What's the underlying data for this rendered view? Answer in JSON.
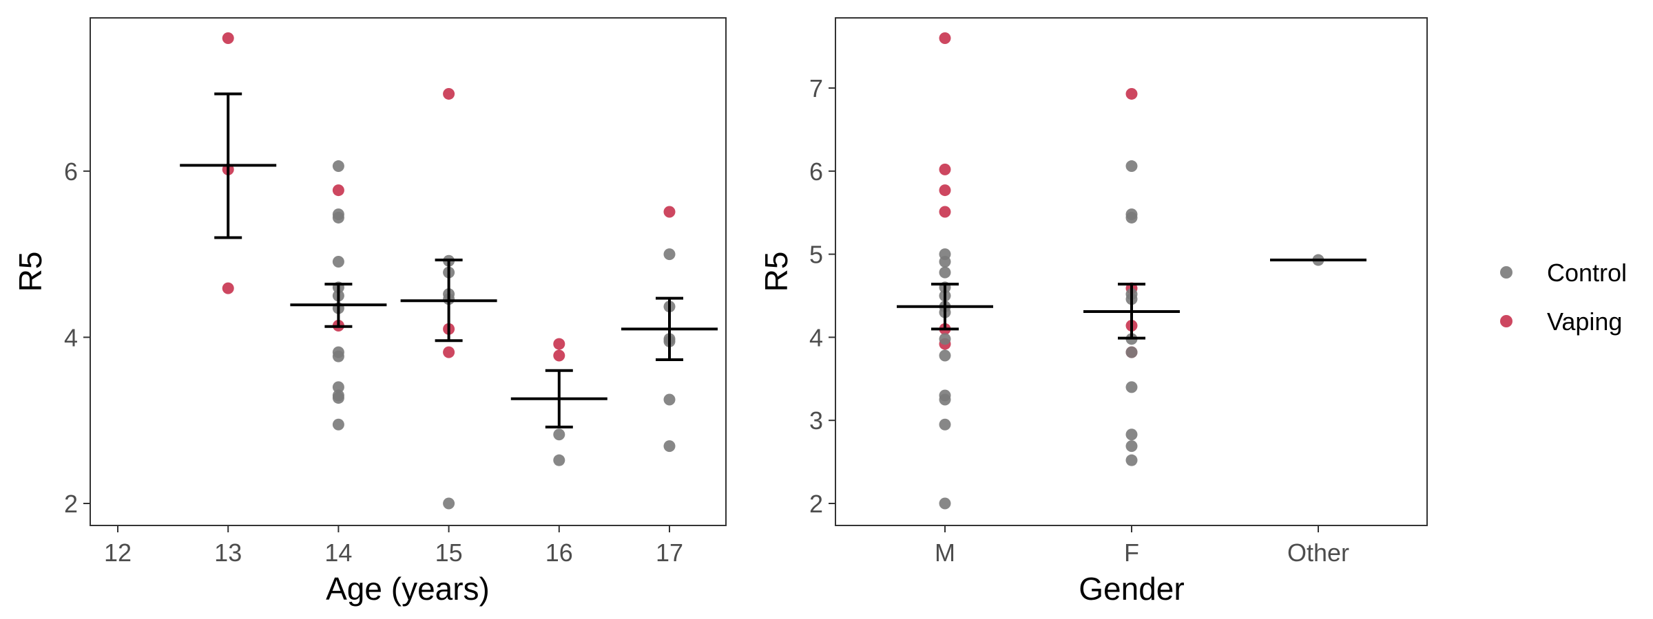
{
  "colors": {
    "Control": "#7a7a7a",
    "Vaping": "#c8334f",
    "errorbar": "#000000"
  },
  "legend": {
    "placement": "right",
    "items": [
      {
        "key": "Control",
        "label": "Control"
      },
      {
        "key": "Vaping",
        "label": "Vaping"
      }
    ]
  },
  "chart_data": [
    {
      "type": "scatter",
      "xlabel": "Age (years)",
      "ylabel": "R5",
      "categories": [
        "12",
        "13",
        "14",
        "15",
        "16",
        "17"
      ],
      "yticks": [
        "2",
        "4",
        "6"
      ],
      "ylim": [
        1.75,
        7.9
      ],
      "grid": false,
      "points": [
        {
          "x": "13",
          "y": 7.6,
          "group": "Vaping"
        },
        {
          "x": "13",
          "y": 6.02,
          "group": "Vaping"
        },
        {
          "x": "13",
          "y": 4.59,
          "group": "Vaping"
        },
        {
          "x": "14",
          "y": 6.06,
          "group": "Control"
        },
        {
          "x": "14",
          "y": 5.48,
          "group": "Control"
        },
        {
          "x": "14",
          "y": 5.44,
          "group": "Control"
        },
        {
          "x": "14",
          "y": 4.91,
          "group": "Control"
        },
        {
          "x": "14",
          "y": 4.6,
          "group": "Control"
        },
        {
          "x": "14",
          "y": 4.5,
          "group": "Control"
        },
        {
          "x": "14",
          "y": 4.35,
          "group": "Control"
        },
        {
          "x": "14",
          "y": 3.82,
          "group": "Control"
        },
        {
          "x": "14",
          "y": 3.77,
          "group": "Control"
        },
        {
          "x": "14",
          "y": 3.4,
          "group": "Control"
        },
        {
          "x": "14",
          "y": 3.3,
          "group": "Control"
        },
        {
          "x": "14",
          "y": 3.27,
          "group": "Control"
        },
        {
          "x": "14",
          "y": 2.95,
          "group": "Control"
        },
        {
          "x": "14",
          "y": 5.77,
          "group": "Vaping"
        },
        {
          "x": "14",
          "y": 4.14,
          "group": "Vaping"
        },
        {
          "x": "15",
          "y": 4.92,
          "group": "Control"
        },
        {
          "x": "15",
          "y": 4.78,
          "group": "Control"
        },
        {
          "x": "15",
          "y": 4.52,
          "group": "Control"
        },
        {
          "x": "15",
          "y": 4.46,
          "group": "Control"
        },
        {
          "x": "15",
          "y": 2.0,
          "group": "Control"
        },
        {
          "x": "15",
          "y": 6.93,
          "group": "Vaping"
        },
        {
          "x": "15",
          "y": 4.1,
          "group": "Vaping"
        },
        {
          "x": "15",
          "y": 3.82,
          "group": "Vaping"
        },
        {
          "x": "16",
          "y": 2.83,
          "group": "Control"
        },
        {
          "x": "16",
          "y": 2.52,
          "group": "Control"
        },
        {
          "x": "16",
          "y": 3.92,
          "group": "Vaping"
        },
        {
          "x": "16",
          "y": 3.78,
          "group": "Vaping"
        },
        {
          "x": "17",
          "y": 5.0,
          "group": "Control"
        },
        {
          "x": "17",
          "y": 4.37,
          "group": "Control"
        },
        {
          "x": "17",
          "y": 3.98,
          "group": "Control"
        },
        {
          "x": "17",
          "y": 3.95,
          "group": "Control"
        },
        {
          "x": "17",
          "y": 3.25,
          "group": "Control"
        },
        {
          "x": "17",
          "y": 2.69,
          "group": "Control"
        },
        {
          "x": "17",
          "y": 5.51,
          "group": "Vaping"
        }
      ],
      "summary": [
        {
          "x": "13",
          "mean": 6.07,
          "lower": 5.2,
          "upper": 6.93
        },
        {
          "x": "14",
          "mean": 4.39,
          "lower": 4.13,
          "upper": 4.64
        },
        {
          "x": "15",
          "mean": 4.44,
          "lower": 3.96,
          "upper": 4.93
        },
        {
          "x": "16",
          "mean": 3.26,
          "lower": 2.92,
          "upper": 3.6
        },
        {
          "x": "17",
          "mean": 4.1,
          "lower": 3.73,
          "upper": 4.47
        }
      ]
    },
    {
      "type": "scatter",
      "xlabel": "Gender",
      "ylabel": "R5",
      "categories": [
        "M",
        "F",
        "Other"
      ],
      "yticks": [
        "2",
        "3",
        "4",
        "5",
        "6",
        "7"
      ],
      "ylim": [
        1.75,
        7.9
      ],
      "grid": false,
      "points": [
        {
          "x": "M",
          "y": 7.6,
          "group": "Vaping"
        },
        {
          "x": "M",
          "y": 6.02,
          "group": "Vaping"
        },
        {
          "x": "M",
          "y": 5.77,
          "group": "Vaping"
        },
        {
          "x": "M",
          "y": 5.51,
          "group": "Vaping"
        },
        {
          "x": "M",
          "y": 4.1,
          "group": "Vaping"
        },
        {
          "x": "M",
          "y": 3.92,
          "group": "Vaping"
        },
        {
          "x": "M",
          "y": 5.0,
          "group": "Control"
        },
        {
          "x": "M",
          "y": 4.91,
          "group": "Control"
        },
        {
          "x": "M",
          "y": 4.78,
          "group": "Control"
        },
        {
          "x": "M",
          "y": 4.6,
          "group": "Control"
        },
        {
          "x": "M",
          "y": 4.5,
          "group": "Control"
        },
        {
          "x": "M",
          "y": 4.37,
          "group": "Control"
        },
        {
          "x": "M",
          "y": 4.3,
          "group": "Control"
        },
        {
          "x": "M",
          "y": 3.98,
          "group": "Control"
        },
        {
          "x": "M",
          "y": 3.78,
          "group": "Control"
        },
        {
          "x": "M",
          "y": 3.3,
          "group": "Control"
        },
        {
          "x": "M",
          "y": 3.25,
          "group": "Control"
        },
        {
          "x": "M",
          "y": 2.95,
          "group": "Control"
        },
        {
          "x": "M",
          "y": 2.0,
          "group": "Control"
        },
        {
          "x": "F",
          "y": 6.93,
          "group": "Vaping"
        },
        {
          "x": "F",
          "y": 4.59,
          "group": "Vaping"
        },
        {
          "x": "F",
          "y": 4.14,
          "group": "Vaping"
        },
        {
          "x": "F",
          "y": 3.82,
          "group": "Vaping"
        },
        {
          "x": "F",
          "y": 6.06,
          "group": "Control"
        },
        {
          "x": "F",
          "y": 5.48,
          "group": "Control"
        },
        {
          "x": "F",
          "y": 5.44,
          "group": "Control"
        },
        {
          "x": "F",
          "y": 4.52,
          "group": "Control"
        },
        {
          "x": "F",
          "y": 4.46,
          "group": "Control"
        },
        {
          "x": "F",
          "y": 3.98,
          "group": "Control"
        },
        {
          "x": "F",
          "y": 3.82,
          "group": "Control"
        },
        {
          "x": "F",
          "y": 3.4,
          "group": "Control"
        },
        {
          "x": "F",
          "y": 2.83,
          "group": "Control"
        },
        {
          "x": "F",
          "y": 2.69,
          "group": "Control"
        },
        {
          "x": "F",
          "y": 2.52,
          "group": "Control"
        },
        {
          "x": "Other",
          "y": 4.93,
          "group": "Control"
        }
      ],
      "summary": [
        {
          "x": "M",
          "mean": 4.37,
          "lower": 4.1,
          "upper": 4.64
        },
        {
          "x": "F",
          "mean": 4.31,
          "lower": 3.99,
          "upper": 4.64
        },
        {
          "x": "Other",
          "mean": 4.93
        }
      ]
    }
  ]
}
